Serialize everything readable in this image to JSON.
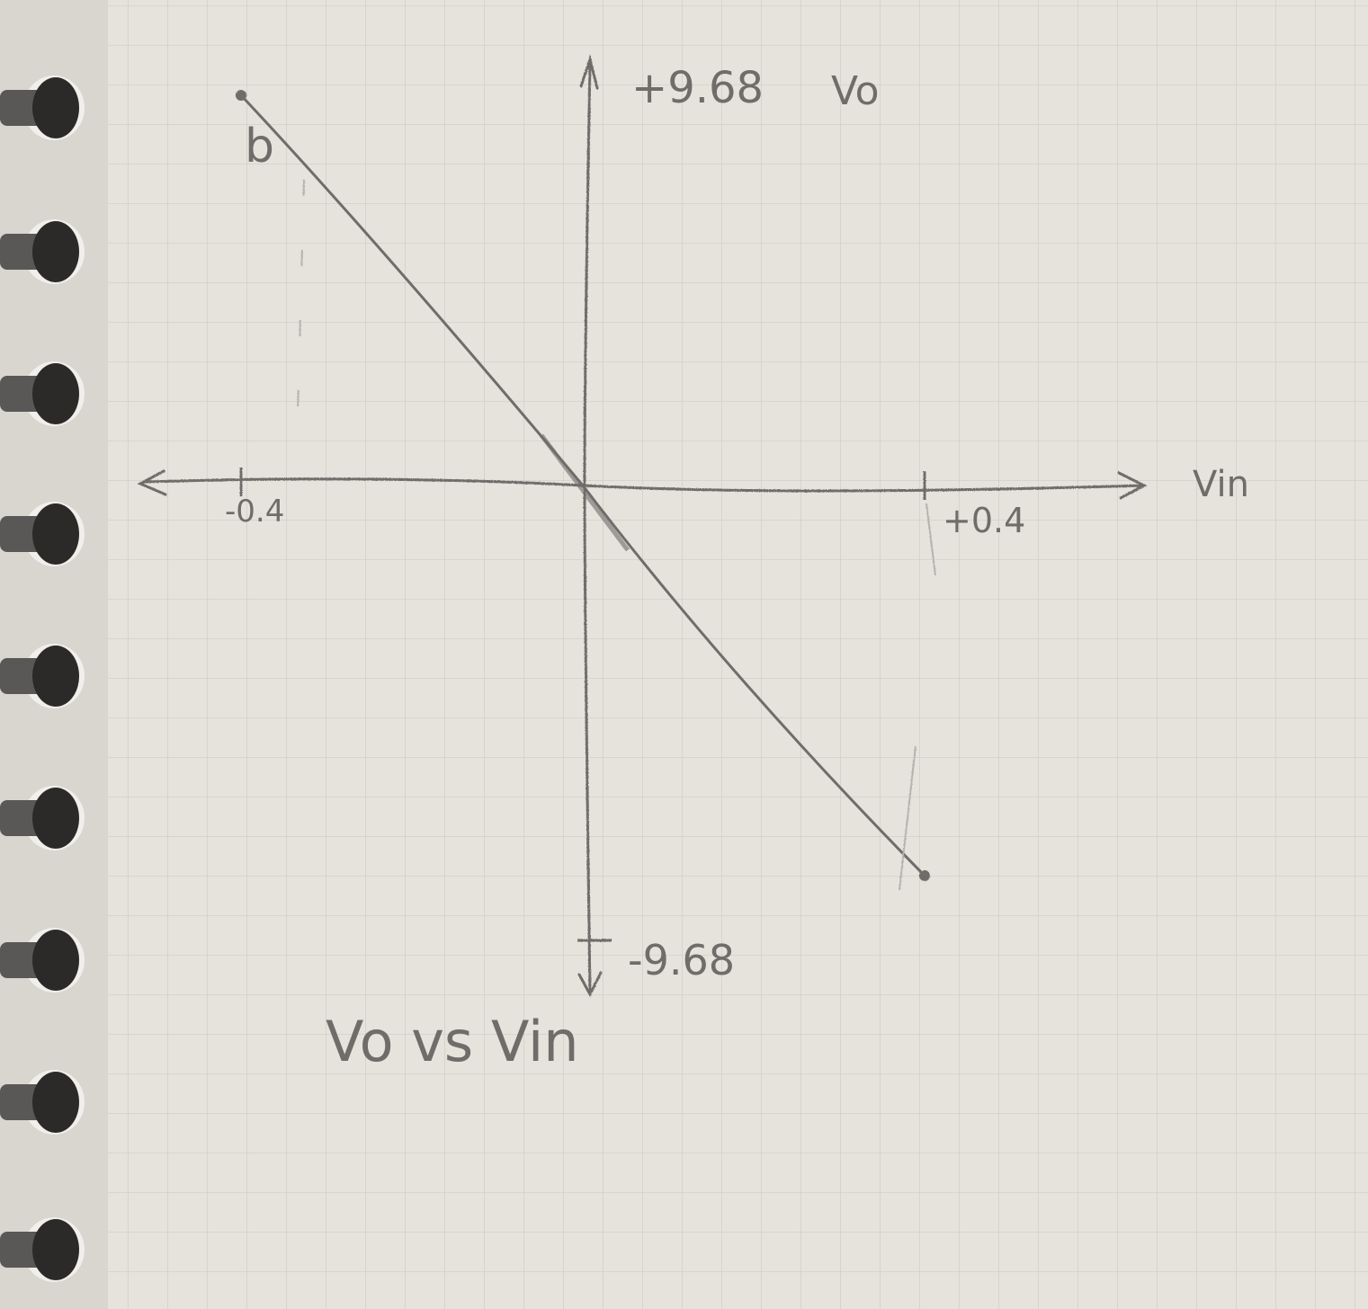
{
  "chart_data": {
    "type": "line",
    "title": "Vo vs Vin",
    "xlabel": "Vin",
    "ylabel": "Vo",
    "series_marker_label": "b",
    "x_tick_labels": [
      "-0.4",
      "+0.4"
    ],
    "y_tick_labels": [
      "+9.68",
      "-9.68"
    ],
    "xlim": [
      -0.4,
      0.4
    ],
    "ylim": [
      -9.68,
      9.68
    ],
    "series": [
      {
        "x": [
          -0.4,
          0,
          0.4
        ],
        "y": [
          9.68,
          0,
          -9.68
        ]
      }
    ],
    "grid": true,
    "paper_color": "#e6e2dc",
    "grid_color": "#cfcbc5",
    "pencil_color": "#6f6c69",
    "binding_color": "#2b2a29"
  }
}
